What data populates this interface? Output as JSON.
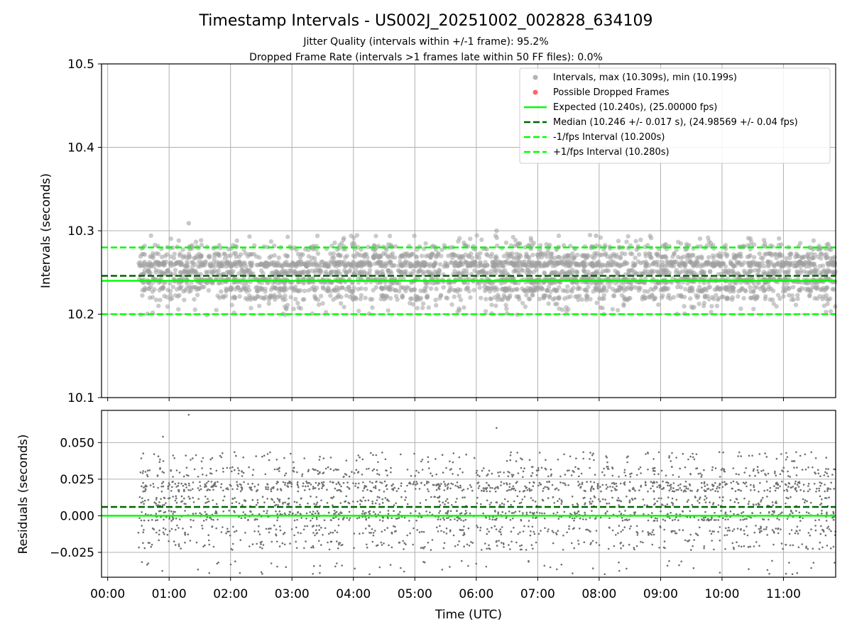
{
  "title": "Timestamp Intervals - US002J_20251002_002828_634109",
  "subtitle1": "Jitter Quality (intervals within +/-1 frame): 95.2%",
  "subtitle2": "Dropped Frame Rate (intervals >1 frames late within 50 FF files): 0.0%",
  "colors": {
    "points": "#808080",
    "dropped": "#ff0000",
    "expected": "#00ff00",
    "median": "#006400",
    "fps_interval": "#00ff00",
    "grid": "#b0b0b0"
  },
  "chart_data": [
    {
      "type": "scatter",
      "name": "intervals",
      "ylabel": "Intervals (seconds)",
      "ylim": [
        10.1,
        10.5
      ],
      "yticks": [
        "10.1",
        "10.2",
        "10.3",
        "10.4",
        "10.5"
      ],
      "ytick_values": [
        10.1,
        10.2,
        10.3,
        10.4,
        10.5
      ],
      "xlim_hours": [
        -0.1,
        11.85
      ],
      "grid": true,
      "legend_placement": "top-right",
      "series": [
        {
          "name": "Intervals, max (10.309s), min (10.199s)",
          "kind": "points",
          "color": "#a0a0a0",
          "x_range_hours": [
            0.5,
            11.85
          ],
          "y_levels": [
            10.22,
            10.23,
            10.24,
            10.25,
            10.26,
            10.27,
            10.28
          ],
          "y_min": 10.199,
          "y_max": 10.309
        },
        {
          "name": "Possible Dropped Frames",
          "kind": "points",
          "color": "#ff0000",
          "values": []
        },
        {
          "name": "Expected (10.240s), (25.00000 fps)",
          "kind": "hline",
          "y": 10.24,
          "style": "solid",
          "color": "#00ff00"
        },
        {
          "name": "Median (10.246 +/- 0.017 s), (24.98569 +/- 0.04 fps)",
          "kind": "hline",
          "y": 10.246,
          "style": "dashed",
          "color": "#006400"
        },
        {
          "name": "-1/fps Interval (10.200s)",
          "kind": "hline",
          "y": 10.2,
          "style": "dashed",
          "color": "#00ff00"
        },
        {
          "name": "+1/fps Interval (10.280s)",
          "kind": "hline",
          "y": 10.28,
          "style": "dashed",
          "color": "#00ff00"
        }
      ],
      "notable_points": [
        {
          "x_hours": 1.32,
          "y": 10.309
        },
        {
          "x_hours": 6.33,
          "y": 10.3
        },
        {
          "x_hours": 7.95,
          "y": 10.294
        }
      ]
    },
    {
      "type": "scatter",
      "name": "residuals",
      "xlabel": "Time (UTC)",
      "ylabel": "Residuals (seconds)",
      "ylim": [
        -0.042,
        0.072
      ],
      "yticks": [
        "−0.025",
        "0.000",
        "0.025",
        "0.050"
      ],
      "ytick_values": [
        -0.025,
        0.0,
        0.025,
        0.05
      ],
      "xticks": [
        "00:00",
        "01:00",
        "02:00",
        "03:00",
        "04:00",
        "05:00",
        "06:00",
        "07:00",
        "08:00",
        "09:00",
        "10:00",
        "11:00"
      ],
      "xtick_values_hours": [
        0,
        1,
        2,
        3,
        4,
        5,
        6,
        7,
        8,
        9,
        10,
        11
      ],
      "xlim_hours": [
        -0.1,
        11.85
      ],
      "grid": true,
      "series": [
        {
          "name": "residuals",
          "kind": "points",
          "color": "#707070",
          "x_range_hours": [
            0.5,
            11.85
          ],
          "y_levels": [
            -0.02,
            -0.01,
            0.0,
            0.01,
            0.02,
            0.03,
            0.04
          ],
          "y_min": -0.04,
          "y_max": 0.069
        },
        {
          "name": "expected",
          "kind": "hline",
          "y": 0.0,
          "style": "solid",
          "color": "#00ff00"
        },
        {
          "name": "median",
          "kind": "hline",
          "y": 0.006,
          "style": "dashed",
          "color": "#006400"
        }
      ],
      "notable_points": [
        {
          "x_hours": 1.32,
          "y": 0.069
        },
        {
          "x_hours": 6.33,
          "y": 0.06
        },
        {
          "x_hours": 0.9,
          "y": 0.054
        }
      ]
    }
  ]
}
